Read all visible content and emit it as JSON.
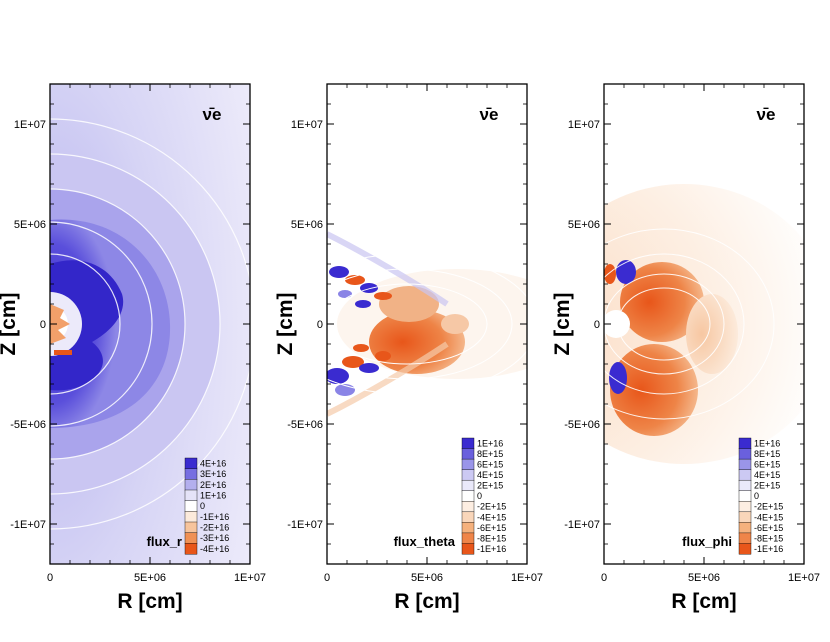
{
  "chart_data": [
    {
      "type": "heatmap",
      "field": "flux_r",
      "species": "ν̄e",
      "xlabel": "R [cm]",
      "ylabel": "Z [cm]",
      "xlim": [
        0,
        10000000
      ],
      "ylim": [
        -12000000,
        12000000
      ],
      "xticks": [
        {
          "v": 0,
          "label": "0"
        },
        {
          "v": 5000000,
          "label": "5E+06"
        },
        {
          "v": 10000000,
          "label": "1E+07"
        }
      ],
      "yticks": [
        {
          "v": 10000000,
          "label": "1E+07"
        },
        {
          "v": 5000000,
          "label": "5E+06"
        },
        {
          "v": 0,
          "label": "0"
        },
        {
          "v": -5000000,
          "label": "-5E+06"
        },
        {
          "v": -10000000,
          "label": "-1E+07"
        }
      ],
      "legend": [
        "4E+16",
        "3E+16",
        "2E+16",
        "1E+16",
        "0",
        "-1E+16",
        "-2E+16",
        "-3E+16",
        "-4E+16"
      ]
    },
    {
      "type": "heatmap",
      "field": "flux_theta",
      "species": "ν̄e",
      "xlabel": "R [cm]",
      "ylabel": "Z [cm]",
      "xlim": [
        0,
        10000000
      ],
      "ylim": [
        -12000000,
        12000000
      ],
      "xticks": [
        {
          "v": 0,
          "label": "0"
        },
        {
          "v": 5000000,
          "label": "5E+06"
        },
        {
          "v": 10000000,
          "label": "1E+07"
        }
      ],
      "yticks": [
        {
          "v": 10000000,
          "label": "1E+07"
        },
        {
          "v": 5000000,
          "label": "5E+06"
        },
        {
          "v": 0,
          "label": "0"
        },
        {
          "v": -5000000,
          "label": "-5E+06"
        },
        {
          "v": -10000000,
          "label": "-1E+07"
        }
      ],
      "legend": [
        "1E+16",
        "8E+15",
        "6E+15",
        "4E+15",
        "2E+15",
        "0",
        "-2E+15",
        "-4E+15",
        "-6E+15",
        "-8E+15",
        "-1E+16"
      ]
    },
    {
      "type": "heatmap",
      "field": "flux_phi",
      "species": "ν̄e",
      "xlabel": "R [cm]",
      "ylabel": "Z [cm]",
      "xlim": [
        0,
        10000000
      ],
      "ylim": [
        -12000000,
        12000000
      ],
      "xticks": [
        {
          "v": 0,
          "label": "0"
        },
        {
          "v": 5000000,
          "label": "5E+06"
        },
        {
          "v": 10000000,
          "label": "1E+07"
        }
      ],
      "yticks": [
        {
          "v": 10000000,
          "label": "1E+07"
        },
        {
          "v": 5000000,
          "label": "5E+06"
        },
        {
          "v": 0,
          "label": "0"
        },
        {
          "v": -5000000,
          "label": "-5E+06"
        },
        {
          "v": -10000000,
          "label": "-1E+07"
        }
      ],
      "legend": [
        "1E+16",
        "8E+15",
        "6E+15",
        "4E+15",
        "2E+15",
        "0",
        "-2E+15",
        "-4E+15",
        "-6E+15",
        "-8E+15",
        "-1E+16"
      ]
    }
  ],
  "colors": {
    "positive_strong": "#3a2bd0",
    "positive_mid": "#8a84e6",
    "positive_light": "#dcdaf6",
    "neutral": "#ffffff",
    "negative_light": "#fbe3cf",
    "negative_mid": "#f3a468",
    "negative_strong": "#e8561a"
  }
}
